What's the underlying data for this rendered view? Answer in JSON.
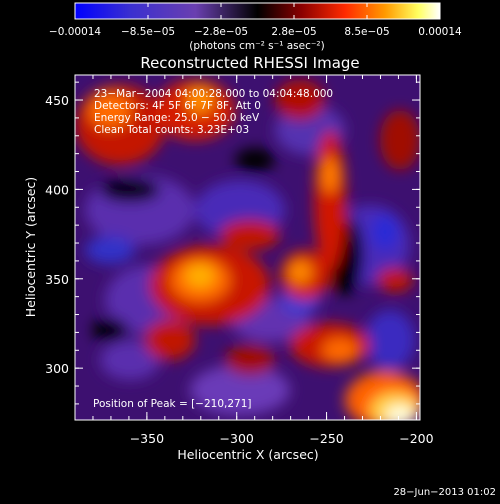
{
  "colorbar": {
    "tick_labels": [
      "−0.00014",
      "−8.5e−05",
      "−2.8e−05",
      "2.8e−05",
      "8.5e−05",
      "0.00014"
    ],
    "unit_text": "(photons cm⁻² s⁻¹ asec⁻²)",
    "colors": [
      "#0000ff",
      "#3a2fd0",
      "#6a3fb0",
      "#000000",
      "#8a0000",
      "#ff2a00",
      "#ff9a00",
      "#ffff60",
      "#ffffff"
    ]
  },
  "plot": {
    "title": "Reconstructed RHESSI Image",
    "info_lines": [
      "23−Mar−2004 04:00:28.000 to 04:04:48.000",
      "Detectors: 4F 5F 6F 7F 8F, Att 0",
      "Energy Range: 25.0 − 50.0 keV",
      "Clean     Total counts: 3.23E+03"
    ],
    "peak_text": "Position of Peak = [−210,271]",
    "xlabel": "Heliocentric X (arcsec)",
    "ylabel": "Heliocentric Y (arcsec)",
    "x_ticks": [
      {
        "value": -350,
        "label": "−350"
      },
      {
        "value": -300,
        "label": "−300"
      },
      {
        "value": -250,
        "label": "−250"
      },
      {
        "value": -200,
        "label": "−200"
      }
    ],
    "y_ticks": [
      {
        "value": 300,
        "label": "300"
      },
      {
        "value": 350,
        "label": "350"
      },
      {
        "value": 400,
        "label": "400"
      },
      {
        "value": 450,
        "label": "450"
      }
    ],
    "xlim": [
      -390,
      -198
    ],
    "ylim": [
      271,
      464
    ]
  },
  "footer": {
    "timestamp": "28−Jun−2013 01:02"
  }
}
